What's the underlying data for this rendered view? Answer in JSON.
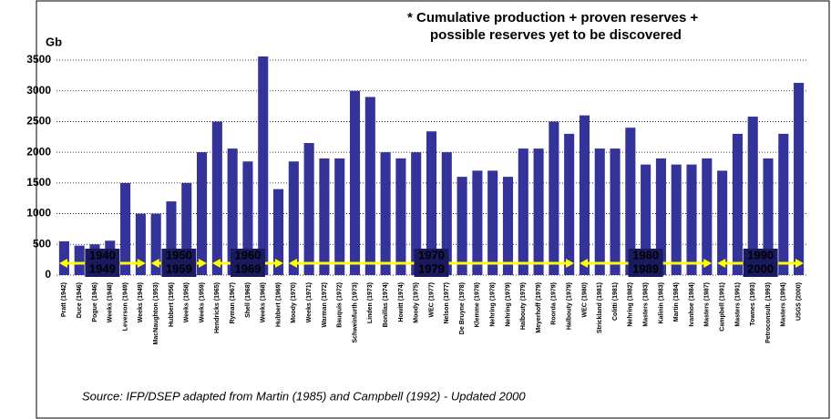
{
  "chart_data": {
    "type": "bar",
    "title": [
      "* Cumulative production + proven reserves +",
      "possible reserves yet to be discovered"
    ],
    "y_label": "Gb",
    "source": "Source: IFP/DSEP adapted from Martin (1985) and Campbell (1992) - Updated 2000",
    "categories": [
      "Pratt (1942)",
      "Duce (1946)",
      "Pogue (1946)",
      "Weeks (1948)",
      "Leverson (1949)",
      "Weeks (1949)",
      "MacNaughton (1953)",
      "Hubbert (1956)",
      "Weeks (1958)",
      "Weeks (1959)",
      "Hendricks (1965)",
      "Ryman (1967)",
      "Shell (1968)",
      "Weeks (1968)",
      "Hubbert (1969)",
      "Moody (1970)",
      "Weeks (1971)",
      "Warman (1972)",
      "Bauquis (1972)",
      "Schweinfurth (1973)",
      "Linden (1973)",
      "Bonillas (1974)",
      "Howitt (1974)",
      "Moody (1975)",
      "WEC (1977)",
      "Nelson (1977)",
      "De Bruyne (1978)",
      "Klemme (1978)",
      "Nehring (1978)",
      "Nehring (1979)",
      "Halbouty (1979)",
      "Meyerhoff (1979)",
      "Roorda (1979)",
      "Halbouty (1979)",
      "WEC (1980)",
      "Strickland (1981)",
      "Colitti (1981)",
      "Nehring (1982)",
      "Masters (1983)",
      "Kalinin (1983)",
      "Martin (1984)",
      "Ivanhoe (1984)",
      "Masters (1987)",
      "Campbell (1991)",
      "Masters (1991)",
      "Townes (1993)",
      "Petroconsult. (1993)",
      "Masters (1994)",
      "USGS (2000)"
    ],
    "values": [
      550,
      480,
      500,
      560,
      1500,
      1000,
      1000,
      1200,
      1500,
      2000,
      2500,
      2060,
      1850,
      3560,
      1400,
      1850,
      2150,
      1900,
      1900,
      3000,
      2900,
      2000,
      1900,
      2000,
      2340,
      2000,
      1600,
      1700,
      1700,
      1600,
      2060,
      2060,
      2500,
      2300,
      2600,
      2060,
      2060,
      2400,
      1800,
      1900,
      1800,
      1800,
      1900,
      1700,
      2300,
      2580,
      1900,
      2300,
      3130
    ],
    "color": "#333399",
    "highlight": {
      "index": 18,
      "color": "#ff0000"
    },
    "decades": [
      [
        "1940",
        "1949"
      ],
      [
        "1950",
        "1959"
      ],
      [
        "1960",
        "1969"
      ],
      [
        "1970",
        "1979"
      ],
      [
        "1980",
        "1989"
      ],
      [
        "1990",
        "2000"
      ]
    ],
    "ylim": [
      0,
      3500
    ],
    "yticks": [
      0,
      500,
      1000,
      1500,
      2000,
      2500,
      3000,
      3500
    ],
    "grid": true
  }
}
